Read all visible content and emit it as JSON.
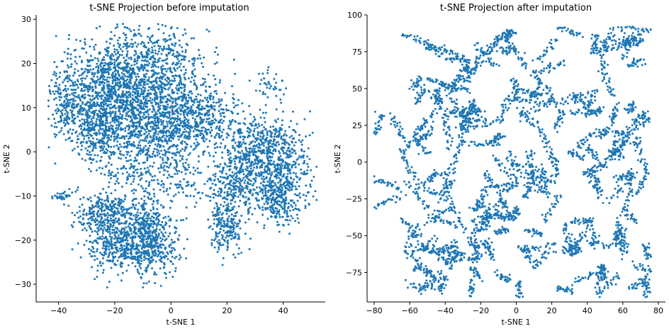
{
  "chart_data": [
    {
      "type": "scatter",
      "title": "t-SNE Projection before imputation",
      "xlabel": "t-SNE 1",
      "ylabel": "t-SNE 2",
      "xlim": [
        -48,
        55
      ],
      "ylim": [
        -34,
        31
      ],
      "xticks": [
        -40,
        -20,
        0,
        20,
        40
      ],
      "yticks": [
        -30,
        -20,
        -10,
        0,
        10,
        20,
        30
      ],
      "x_tick_labels": [
        "−40",
        "−20",
        "0",
        "20",
        "40"
      ],
      "y_tick_labels": [
        "−30",
        "−20",
        "−10",
        "0",
        "10",
        "20",
        "30"
      ],
      "marker_color": "#1f77b4",
      "clusters": [
        {
          "cx": -10,
          "cy": 10,
          "sx": 12,
          "sy": 6,
          "n": 1100
        },
        {
          "cx": -25,
          "cy": 6,
          "sx": 5,
          "sy": 4,
          "n": 350
        },
        {
          "cx": -25,
          "cy": 16,
          "sx": 8,
          "sy": 5,
          "n": 450
        },
        {
          "cx": -8,
          "cy": 20,
          "sx": 10,
          "sy": 5,
          "n": 500
        },
        {
          "cx": -38,
          "cy": 11,
          "sx": 3,
          "sy": 4,
          "n": 150
        },
        {
          "cx": 10,
          "cy": 7,
          "sx": 8,
          "sy": 3,
          "n": 350
        },
        {
          "cx": 30,
          "cy": 0,
          "sx": 5,
          "sy": 4,
          "n": 400
        },
        {
          "cx": 40,
          "cy": -3,
          "sx": 5,
          "sy": 5,
          "n": 350
        },
        {
          "cx": 38,
          "cy": -11,
          "sx": 5,
          "sy": 2.5,
          "n": 250
        },
        {
          "cx": 22,
          "cy": -8,
          "sx": 4,
          "sy": 3,
          "n": 200
        },
        {
          "cx": 20,
          "cy": -17,
          "sx": 3,
          "sy": 3,
          "n": 200
        },
        {
          "cx": -8,
          "cy": -20,
          "sx": 5,
          "sy": 4,
          "n": 550
        },
        {
          "cx": -22,
          "cy": -14,
          "sx": 6,
          "sy": 2.5,
          "n": 350
        },
        {
          "cx": -20,
          "cy": -22,
          "sx": 5,
          "sy": 3,
          "n": 250
        },
        {
          "cx": -10,
          "cy": 0,
          "sx": 9,
          "sy": 5,
          "n": 300
        },
        {
          "cx": 35,
          "cy": 15,
          "sx": 3,
          "sy": 2,
          "n": 40
        },
        {
          "cx": -38,
          "cy": -10,
          "sx": 2,
          "sy": 0.5,
          "n": 25
        },
        {
          "cx": 5,
          "cy": -5,
          "sx": 12,
          "sy": 5,
          "n": 200
        }
      ]
    },
    {
      "type": "scatter",
      "title": "t-SNE Projection after imputation",
      "xlabel": "t-SNE 1",
      "ylabel": "t-SNE 2",
      "xlim": [
        -84,
        84
      ],
      "ylim": [
        -95,
        100
      ],
      "xticks": [
        -80,
        -60,
        -40,
        -20,
        0,
        20,
        40,
        60,
        80
      ],
      "yticks": [
        -75,
        -50,
        -25,
        0,
        25,
        50,
        75,
        100
      ],
      "x_tick_labels": [
        "−80",
        "−60",
        "−40",
        "−20",
        "0",
        "20",
        "40",
        "60",
        "80"
      ],
      "y_tick_labels": [
        "−75",
        "−50",
        "−25",
        "0",
        "25",
        "50",
        "75",
        "100"
      ],
      "marker_color": "#1f77b4",
      "region": {
        "xmin": -78,
        "xmax": 74,
        "ymin": -88,
        "ymax": 90
      },
      "n_segments": 170,
      "points_per_segment": 26
    }
  ]
}
